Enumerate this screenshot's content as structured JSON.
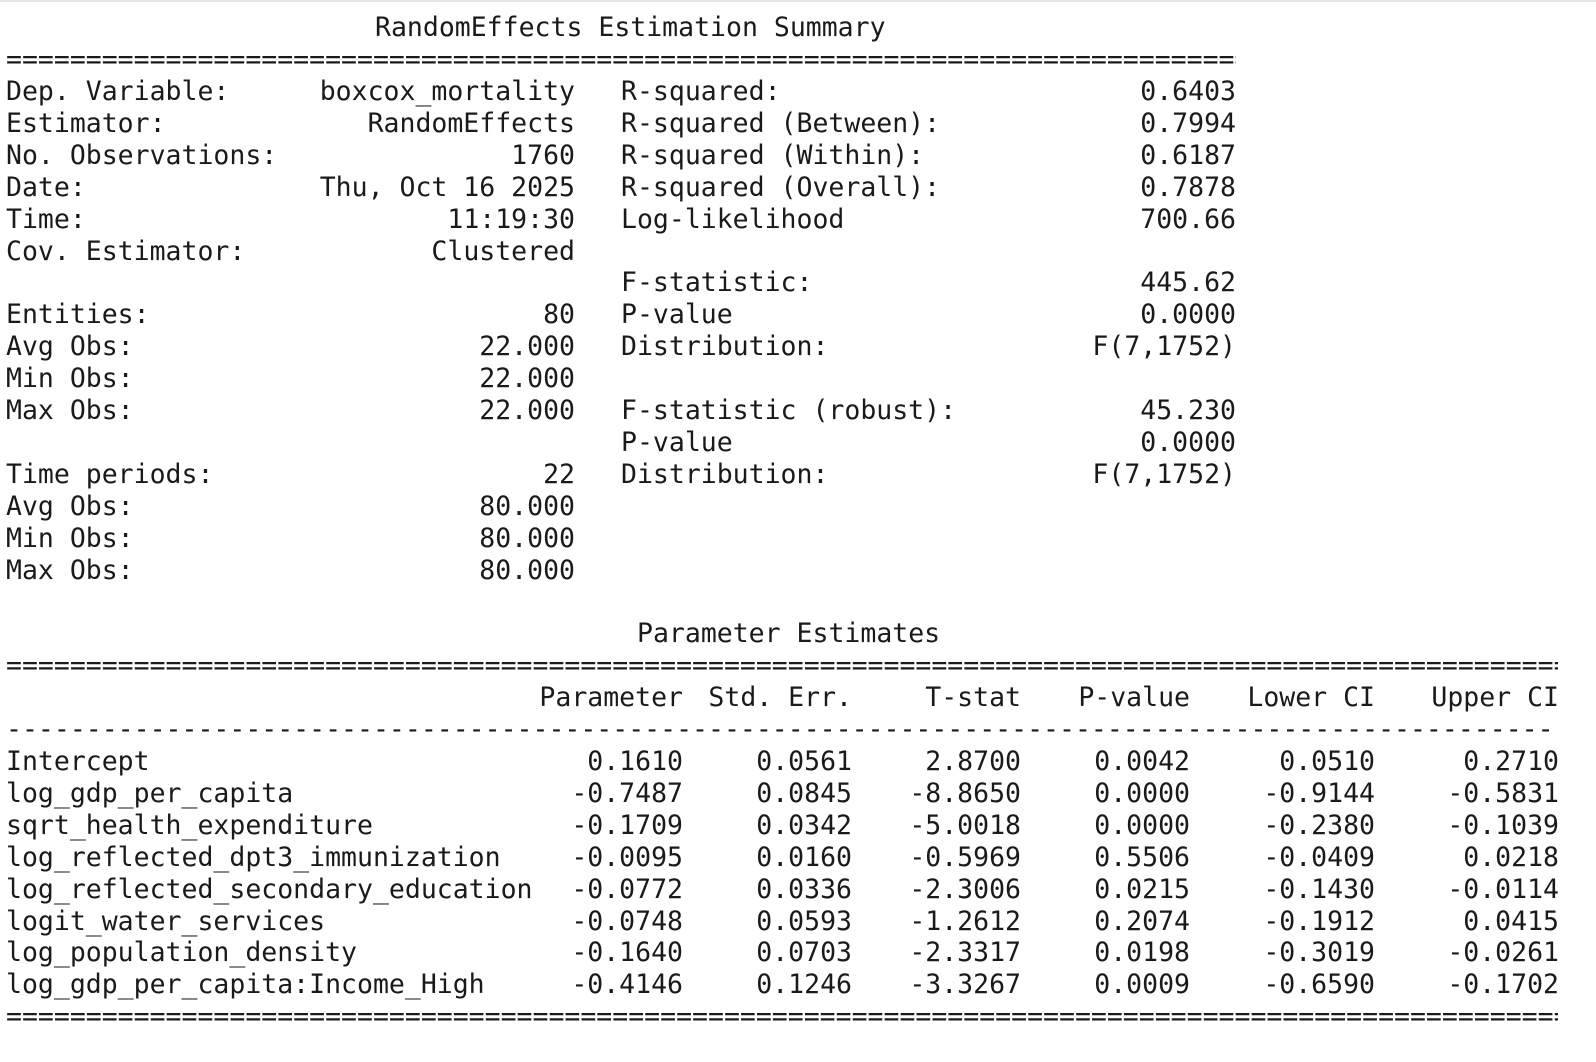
{
  "summary": {
    "title": "RandomEffects Estimation Summary",
    "left": [
      {
        "label": "Dep. Variable:",
        "value": "boxcox_mortality"
      },
      {
        "label": "Estimator:",
        "value": "RandomEffects"
      },
      {
        "label": "No. Observations:",
        "value": "1760"
      },
      {
        "label": "Date:",
        "value": "Thu, Oct 16 2025"
      },
      {
        "label": "Time:",
        "value": "11:19:30"
      },
      {
        "label": "Cov. Estimator:",
        "value": "Clustered"
      },
      {
        "label": "",
        "value": ""
      },
      {
        "label": "Entities:",
        "value": "80"
      },
      {
        "label": "Avg Obs:",
        "value": "22.000"
      },
      {
        "label": "Min Obs:",
        "value": "22.000"
      },
      {
        "label": "Max Obs:",
        "value": "22.000"
      },
      {
        "label": "",
        "value": ""
      },
      {
        "label": "Time periods:",
        "value": "22"
      },
      {
        "label": "Avg Obs:",
        "value": "80.000"
      },
      {
        "label": "Min Obs:",
        "value": "80.000"
      },
      {
        "label": "Max Obs:",
        "value": "80.000"
      }
    ],
    "right": [
      {
        "label": "R-squared:",
        "value": "0.6403"
      },
      {
        "label": "R-squared (Between):",
        "value": "0.7994"
      },
      {
        "label": "R-squared (Within):",
        "value": "0.6187"
      },
      {
        "label": "R-squared (Overall):",
        "value": "0.7878"
      },
      {
        "label": "Log-likelihood",
        "value": "700.66"
      },
      {
        "label": "",
        "value": ""
      },
      {
        "label": "F-statistic:",
        "value": "445.62"
      },
      {
        "label": "P-value",
        "value": "0.0000"
      },
      {
        "label": "Distribution:",
        "value": "F(7,1752)"
      },
      {
        "label": "",
        "value": ""
      },
      {
        "label": "F-statistic (robust):",
        "value": "45.230"
      },
      {
        "label": "P-value",
        "value": "0.0000"
      },
      {
        "label": "Distribution:",
        "value": "F(7,1752)"
      }
    ]
  },
  "params": {
    "title": "Parameter Estimates",
    "headers": [
      "Parameter",
      "Std. Err.",
      "T-stat",
      "P-value",
      "Lower CI",
      "Upper CI"
    ],
    "rows": [
      {
        "name": "Intercept",
        "values": [
          "0.1610",
          "0.0561",
          "2.8700",
          "0.0042",
          "0.0510",
          "0.2710"
        ]
      },
      {
        "name": "log_gdp_per_capita",
        "values": [
          "-0.7487",
          "0.0845",
          "-8.8650",
          "0.0000",
          "-0.9144",
          "-0.5831"
        ]
      },
      {
        "name": "sqrt_health_expenditure",
        "values": [
          "-0.1709",
          "0.0342",
          "-5.0018",
          "0.0000",
          "-0.2380",
          "-0.1039"
        ]
      },
      {
        "name": "log_reflected_dpt3_immunization",
        "values": [
          "-0.0095",
          "0.0160",
          "-0.5969",
          "0.5506",
          "-0.0409",
          "0.0218"
        ]
      },
      {
        "name": "log_reflected_secondary_education",
        "values": [
          "-0.0772",
          "0.0336",
          "-2.3006",
          "0.0215",
          "-0.1430",
          "-0.0114"
        ]
      },
      {
        "name": "logit_water_services",
        "values": [
          "-0.0748",
          "0.0593",
          "-1.2612",
          "0.2074",
          "-0.1912",
          "0.0415"
        ]
      },
      {
        "name": "log_population_density",
        "values": [
          "-0.1640",
          "0.0703",
          "-2.3317",
          "0.0198",
          "-0.3019",
          "-0.0261"
        ]
      },
      {
        "name": "log_gdp_per_capita:Income_High",
        "values": [
          "-0.4146",
          "0.1246",
          "-3.3267",
          "0.0009",
          "-0.6590",
          "-0.1702"
        ]
      }
    ]
  }
}
